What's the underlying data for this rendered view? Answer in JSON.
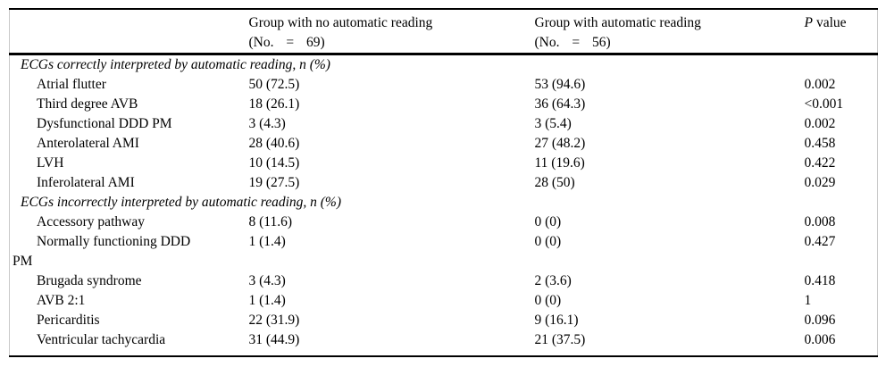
{
  "page": {
    "background_color": "#ffffff",
    "text_color": "#000000",
    "rule_color": "#000000",
    "side_rule_color": "#c9c9c9"
  },
  "table": {
    "header": {
      "col2_line1": "Group with no automatic reading",
      "col2_line2": "(No. = 69)",
      "col3_line1": "Group with automatic reading",
      "col3_line2": "(No. = 56)",
      "col4_italic": "P",
      "col4_rest": "value"
    },
    "sections": [
      {
        "header": "ECGs correctly interpreted by automatic reading, n (%)",
        "rows": [
          {
            "label": "Atrial flutter",
            "no_auto": "50 (72.5)",
            "auto": "53 (94.6)",
            "p": "0.002"
          },
          {
            "label": "Third degree AVB",
            "no_auto": "18 (26.1)",
            "auto": "36 (64.3)",
            "p": "<0.001"
          },
          {
            "label": "Dysfunctional DDD PM",
            "no_auto": "3 (4.3)",
            "auto": "3 (5.4)",
            "p": "0.002"
          },
          {
            "label": "Anterolateral AMI",
            "no_auto": "28 (40.6)",
            "auto": "27 (48.2)",
            "p": "0.458"
          },
          {
            "label": "LVH",
            "no_auto": "10 (14.5)",
            "auto": "11 (19.6)",
            "p": "0.422"
          },
          {
            "label": "Inferolateral AMI",
            "no_auto": "19 (27.5)",
            "auto": "28 (50)",
            "p": "0.029"
          }
        ]
      },
      {
        "header": "ECGs incorrectly interpreted by automatic reading, n (%)",
        "rows": [
          {
            "label": "Accessory pathway",
            "no_auto": "8 (11.6)",
            "auto": "0 (0)",
            "p": "0.008"
          },
          {
            "label": "Normally functioning DDD",
            "label_wrap": "PM",
            "no_auto": "1 (1.4)",
            "auto": "0 (0)",
            "p": "0.427"
          },
          {
            "label": "Brugada syndrome",
            "no_auto": "3 (4.3)",
            "auto": "2 (3.6)",
            "p": "0.418"
          },
          {
            "label": "AVB 2:1",
            "no_auto": "1 (1.4)",
            "auto": "0 (0)",
            "p": "1"
          },
          {
            "label": "Pericarditis",
            "no_auto": "22 (31.9)",
            "auto": "9 (16.1)",
            "p": "0.096"
          },
          {
            "label": "Ventricular tachycardia",
            "no_auto": "31 (44.9)",
            "auto": "21 (37.5)",
            "p": "0.006"
          }
        ]
      }
    ]
  }
}
